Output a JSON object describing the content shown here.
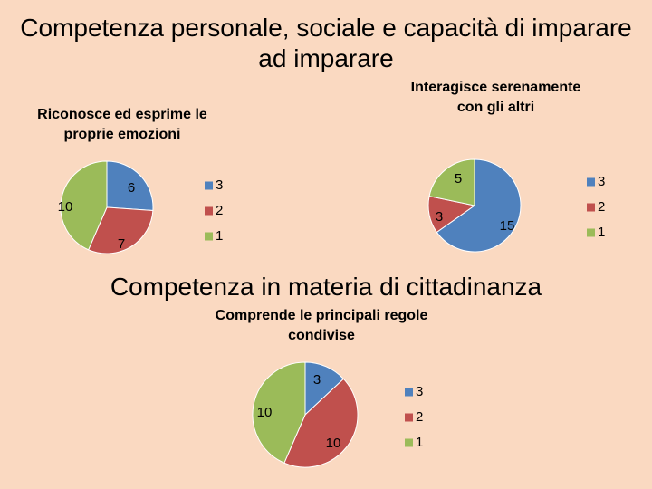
{
  "slide": {
    "title_line1": "Competenza personale, sociale e capacità di imparare",
    "title_line2": "ad imparare",
    "section_title": "Competenza in materia di cittadinanza"
  },
  "colors": {
    "series_3": "#4f81bd",
    "series_2": "#c0504d",
    "series_1": "#9bbb59",
    "background": "#fad9c1"
  },
  "chart_data": [
    {
      "type": "pie",
      "title": "Riconosce ed esprime le proprie emozioni",
      "categories": [
        "3",
        "2",
        "1"
      ],
      "values": [
        6,
        7,
        10
      ],
      "legend": "right"
    },
    {
      "type": "pie",
      "title": "Interagisce serenamente con gli altri",
      "categories": [
        "3",
        "2",
        "1"
      ],
      "values": [
        15,
        3,
        5
      ],
      "legend": "right"
    },
    {
      "type": "pie",
      "title": "Comprende le principali regole condivise",
      "categories": [
        "3",
        "2",
        "1"
      ],
      "values": [
        3,
        10,
        10
      ],
      "legend": "right"
    }
  ]
}
